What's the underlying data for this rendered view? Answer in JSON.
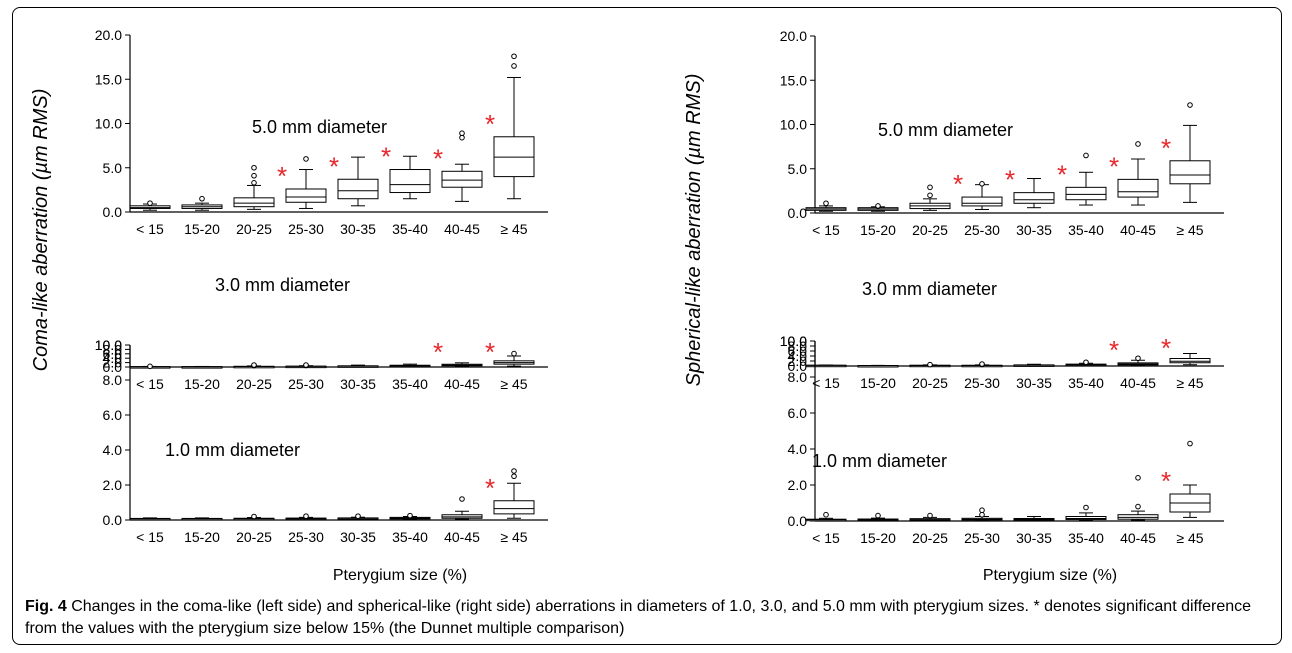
{
  "figure": {
    "caption_label": "Fig. 4",
    "caption_text": " Changes in the coma-like (left side) and spherical-like (right side) aberrations in diameters of 1.0, 3.0, and 5.0 mm with pterygium sizes. * denotes significant difference from the values with the pterygium size below 15% (the Dunnet multiple comparison)"
  },
  "chart_data": [
    {
      "type": "box",
      "panel": "left",
      "ylabel": "Coma-like aberration (µm RMS)",
      "xlabel": "Pterygium size (%)",
      "categories": [
        "< 15",
        "15-20",
        "20-25",
        "25-30",
        "30-35",
        "35-40",
        "40-45",
        "≥ 45"
      ],
      "subplots": [
        {
          "title": "5.0 mm diameter",
          "ylim": [
            0,
            20
          ],
          "ytick_labels": [
            "0.0",
            "5.0",
            "10.0",
            "15.0",
            "20.0"
          ],
          "ytick_values": [
            0,
            5,
            10,
            15,
            20
          ],
          "boxes": [
            {
              "whislo": 0.2,
              "q1": 0.4,
              "med": 0.5,
              "q3": 0.7,
              "whishi": 0.9,
              "fliers": [
                1.0
              ]
            },
            {
              "whislo": 0.2,
              "q1": 0.4,
              "med": 0.6,
              "q3": 0.8,
              "whishi": 1.0,
              "fliers": [
                1.5
              ]
            },
            {
              "whislo": 0.3,
              "q1": 0.6,
              "med": 1.0,
              "q3": 1.6,
              "whishi": 3.0,
              "fliers": [
                3.3,
                4.1,
                5.0
              ]
            },
            {
              "whislo": 0.4,
              "q1": 1.1,
              "med": 1.7,
              "q3": 2.6,
              "whishi": 4.8,
              "fliers": [
                6.0
              ]
            },
            {
              "whislo": 0.7,
              "q1": 1.5,
              "med": 2.4,
              "q3": 3.7,
              "whishi": 6.2,
              "fliers": []
            },
            {
              "whislo": 1.5,
              "q1": 2.2,
              "med": 3.1,
              "q3": 4.8,
              "whishi": 6.3,
              "fliers": []
            },
            {
              "whislo": 1.2,
              "q1": 2.8,
              "med": 3.6,
              "q3": 4.6,
              "whishi": 5.4,
              "fliers": [
                8.4,
                8.9
              ]
            },
            {
              "whislo": 1.5,
              "q1": 4.0,
              "med": 6.2,
              "q3": 8.5,
              "whishi": 15.2,
              "fliers": [
                16.5,
                17.6
              ]
            }
          ],
          "significant": [
            false,
            false,
            false,
            true,
            true,
            true,
            true,
            true
          ]
        },
        {
          "title": "3.0 mm diameter",
          "ylim": [
            0,
            10
          ],
          "ytick_labels": [
            "0.0",
            "2.0",
            "4.0",
            "6.0",
            "8.0",
            "10.0"
          ],
          "ytick_values": [
            0,
            2,
            4,
            6,
            8,
            10
          ],
          "boxes": [
            {
              "whislo": 0.05,
              "q1": 0.1,
              "med": 0.14,
              "q3": 0.18,
              "whishi": 0.25,
              "fliers": [
                0.3
              ]
            },
            {
              "whislo": 0.05,
              "q1": 0.1,
              "med": 0.14,
              "q3": 0.18,
              "whishi": 0.25,
              "fliers": []
            },
            {
              "whislo": 0.05,
              "q1": 0.15,
              "med": 0.22,
              "q3": 0.32,
              "whishi": 0.5,
              "fliers": [
                0.65,
                0.9
              ]
            },
            {
              "whislo": 0.05,
              "q1": 0.18,
              "med": 0.28,
              "q3": 0.4,
              "whishi": 0.6,
              "fliers": [
                0.7,
                0.9
              ]
            },
            {
              "whislo": 0.1,
              "q1": 0.25,
              "med": 0.38,
              "q3": 0.55,
              "whishi": 0.85,
              "fliers": []
            },
            {
              "whislo": 0.2,
              "q1": 0.35,
              "med": 0.5,
              "q3": 0.8,
              "whishi": 1.3,
              "fliers": []
            },
            {
              "whislo": 0.25,
              "q1": 0.55,
              "med": 0.85,
              "q3": 1.25,
              "whishi": 1.9,
              "fliers": []
            },
            {
              "whislo": 0.4,
              "q1": 1.3,
              "med": 2.0,
              "q3": 2.8,
              "whishi": 5.0,
              "fliers": [
                6.1
              ]
            }
          ],
          "significant": [
            false,
            false,
            false,
            false,
            false,
            false,
            true,
            true
          ]
        },
        {
          "title": "1.0 mm diameter",
          "ylim": [
            0,
            10
          ],
          "ytick_labels": [
            "0.0",
            "2.0",
            "4.0",
            "6.0",
            "8.0",
            "10.0"
          ],
          "ytick_values": [
            0,
            2,
            4,
            6,
            8,
            10
          ],
          "boxes": [
            {
              "whislo": 0.02,
              "q1": 0.05,
              "med": 0.07,
              "q3": 0.09,
              "whishi": 0.12,
              "fliers": []
            },
            {
              "whislo": 0.02,
              "q1": 0.05,
              "med": 0.07,
              "q3": 0.09,
              "whishi": 0.12,
              "fliers": []
            },
            {
              "whislo": 0.02,
              "q1": 0.05,
              "med": 0.08,
              "q3": 0.1,
              "whishi": 0.14,
              "fliers": [
                0.2
              ]
            },
            {
              "whislo": 0.02,
              "q1": 0.05,
              "med": 0.08,
              "q3": 0.11,
              "whishi": 0.15,
              "fliers": [
                0.22
              ]
            },
            {
              "whislo": 0.02,
              "q1": 0.06,
              "med": 0.09,
              "q3": 0.12,
              "whishi": 0.16,
              "fliers": [
                0.22
              ]
            },
            {
              "whislo": 0.03,
              "q1": 0.07,
              "med": 0.11,
              "q3": 0.15,
              "whishi": 0.2,
              "fliers": [
                0.25
              ]
            },
            {
              "whislo": 0.05,
              "q1": 0.1,
              "med": 0.18,
              "q3": 0.3,
              "whishi": 0.5,
              "fliers": [
                1.2
              ]
            },
            {
              "whislo": 0.1,
              "q1": 0.35,
              "med": 0.65,
              "q3": 1.1,
              "whishi": 2.1,
              "fliers": [
                2.5,
                2.8
              ]
            }
          ],
          "significant": [
            false,
            false,
            false,
            false,
            false,
            false,
            false,
            true
          ]
        }
      ]
    },
    {
      "type": "box",
      "panel": "right",
      "ylabel": "Spherical-like aberration (µm RMS)",
      "xlabel": "Pterygium size (%)",
      "categories": [
        "< 15",
        "15-20",
        "20-25",
        "25-30",
        "30-35",
        "35-40",
        "40-45",
        "≥ 45"
      ],
      "subplots": [
        {
          "title": "5.0 mm diameter",
          "ylim": [
            0,
            20
          ],
          "ytick_labels": [
            "0.0",
            "5.0",
            "10.0",
            "15.0",
            "20.0"
          ],
          "ytick_values": [
            0,
            5,
            10,
            15,
            20
          ],
          "boxes": [
            {
              "whislo": 0.2,
              "q1": 0.3,
              "med": 0.45,
              "q3": 0.6,
              "whishi": 0.8,
              "fliers": [
                1.1
              ]
            },
            {
              "whislo": 0.2,
              "q1": 0.3,
              "med": 0.45,
              "q3": 0.6,
              "whishi": 0.7,
              "fliers": [
                0.8
              ]
            },
            {
              "whislo": 0.3,
              "q1": 0.5,
              "med": 0.8,
              "q3": 1.1,
              "whishi": 1.6,
              "fliers": [
                2.0,
                2.9
              ]
            },
            {
              "whislo": 0.4,
              "q1": 0.8,
              "med": 1.1,
              "q3": 1.8,
              "whishi": 3.2,
              "fliers": [
                3.3
              ]
            },
            {
              "whislo": 0.6,
              "q1": 1.1,
              "med": 1.5,
              "q3": 2.3,
              "whishi": 3.9,
              "fliers": []
            },
            {
              "whislo": 0.9,
              "q1": 1.5,
              "med": 2.1,
              "q3": 2.9,
              "whishi": 4.6,
              "fliers": [
                6.5
              ]
            },
            {
              "whislo": 0.9,
              "q1": 1.8,
              "med": 2.4,
              "q3": 3.8,
              "whishi": 6.1,
              "fliers": [
                7.8
              ]
            },
            {
              "whislo": 1.2,
              "q1": 3.3,
              "med": 4.3,
              "q3": 5.9,
              "whishi": 9.9,
              "fliers": [
                12.2
              ]
            }
          ],
          "significant": [
            false,
            false,
            false,
            true,
            true,
            true,
            true,
            true
          ]
        },
        {
          "title": "3.0 mm diameter",
          "ylim": [
            0,
            10
          ],
          "ytick_labels": [
            "0.0",
            "2.0",
            "4.0",
            "6.0",
            "8.0",
            "10.0"
          ],
          "ytick_values": [
            0,
            2,
            4,
            6,
            8,
            10
          ],
          "boxes": [
            {
              "whislo": 0.1,
              "q1": 0.18,
              "med": 0.25,
              "q3": 0.32,
              "whishi": 0.4,
              "fliers": []
            },
            {
              "whislo": 0.08,
              "q1": 0.12,
              "med": 0.16,
              "q3": 0.2,
              "whishi": 0.25,
              "fliers": []
            },
            {
              "whislo": 0.05,
              "q1": 0.15,
              "med": 0.22,
              "q3": 0.32,
              "whishi": 0.45,
              "fliers": [
                0.55
              ]
            },
            {
              "whislo": 0.05,
              "q1": 0.15,
              "med": 0.22,
              "q3": 0.3,
              "whishi": 0.45,
              "fliers": [
                0.6,
                0.8
              ]
            },
            {
              "whislo": 0.1,
              "q1": 0.2,
              "med": 0.3,
              "q3": 0.45,
              "whishi": 0.7,
              "fliers": []
            },
            {
              "whislo": 0.2,
              "q1": 0.35,
              "med": 0.5,
              "q3": 0.75,
              "whishi": 1.1,
              "fliers": [
                1.5
              ]
            },
            {
              "whislo": 0.15,
              "q1": 0.45,
              "med": 0.8,
              "q3": 1.25,
              "whishi": 2.3,
              "fliers": [
                3.1
              ]
            },
            {
              "whislo": 0.5,
              "q1": 1.3,
              "med": 1.9,
              "q3": 3.0,
              "whishi": 5.0,
              "fliers": []
            }
          ],
          "significant": [
            false,
            false,
            false,
            false,
            false,
            false,
            true,
            true
          ]
        },
        {
          "title": "1.0 mm diameter",
          "ylim": [
            0,
            10
          ],
          "ytick_labels": [
            "0.0",
            "2.0",
            "4.0",
            "6.0",
            "8.0",
            "10.0"
          ],
          "ytick_values": [
            0,
            2,
            4,
            6,
            8,
            10
          ],
          "boxes": [
            {
              "whislo": 0.02,
              "q1": 0.05,
              "med": 0.08,
              "q3": 0.1,
              "whishi": 0.15,
              "fliers": [
                0.35
              ]
            },
            {
              "whislo": 0.02,
              "q1": 0.05,
              "med": 0.08,
              "q3": 0.11,
              "whishi": 0.16,
              "fliers": [
                0.3
              ]
            },
            {
              "whislo": 0.02,
              "q1": 0.06,
              "med": 0.1,
              "q3": 0.13,
              "whishi": 0.2,
              "fliers": [
                0.3
              ]
            },
            {
              "whislo": 0.02,
              "q1": 0.06,
              "med": 0.1,
              "q3": 0.15,
              "whishi": 0.25,
              "fliers": [
                0.35,
                0.6
              ]
            },
            {
              "whislo": 0.02,
              "q1": 0.06,
              "med": 0.1,
              "q3": 0.14,
              "whishi": 0.25,
              "fliers": []
            },
            {
              "whislo": 0.03,
              "q1": 0.08,
              "med": 0.14,
              "q3": 0.25,
              "whishi": 0.45,
              "fliers": [
                0.75
              ]
            },
            {
              "whislo": 0.05,
              "q1": 0.1,
              "med": 0.2,
              "q3": 0.35,
              "whishi": 0.55,
              "fliers": [
                0.8,
                2.4
              ]
            },
            {
              "whislo": 0.2,
              "q1": 0.5,
              "med": 1.0,
              "q3": 1.5,
              "whishi": 2.0,
              "fliers": [
                4.3
              ]
            }
          ],
          "significant": [
            false,
            false,
            false,
            false,
            false,
            false,
            false,
            true
          ]
        }
      ]
    }
  ]
}
